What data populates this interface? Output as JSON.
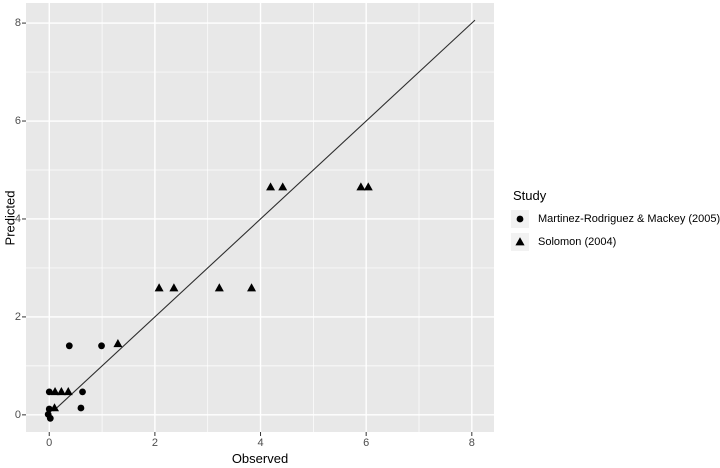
{
  "chart_data": {
    "type": "scatter",
    "title": "",
    "xlabel": "Observed",
    "ylabel": "Predicted",
    "xlim": [
      -0.44,
      8.42
    ],
    "ylim": [
      -0.35,
      8.41
    ],
    "x_ticks": [
      0,
      2,
      4,
      6,
      8
    ],
    "y_ticks": [
      0,
      2,
      4,
      6,
      8
    ],
    "x_minor_ticks": [
      1,
      3,
      5,
      7
    ],
    "y_minor_ticks": [
      1,
      3,
      5,
      7
    ],
    "grid": "major and minor, white on gray panel",
    "legend_title": "Study",
    "legend_position": "right",
    "series": [
      {
        "name": "Martinez-Rodriguez & Mackey (2005)",
        "marker": "circle",
        "points": [
          [
            0.0,
            0.47
          ],
          [
            0.63,
            0.47
          ],
          [
            0.0,
            0.12
          ],
          [
            0.6,
            0.14
          ],
          [
            -0.02,
            0.01
          ],
          [
            0.02,
            -0.07
          ],
          [
            0.38,
            1.41
          ],
          [
            0.99,
            1.41
          ]
        ]
      },
      {
        "name": "Solomon (2004)",
        "marker": "triangle",
        "points": [
          [
            0.11,
            0.47
          ],
          [
            0.23,
            0.47
          ],
          [
            0.36,
            0.47
          ],
          [
            0.1,
            0.14
          ],
          [
            1.3,
            1.45
          ],
          [
            2.08,
            2.59
          ],
          [
            2.36,
            2.59
          ],
          [
            3.22,
            2.59
          ],
          [
            3.83,
            2.59
          ],
          [
            4.19,
            4.65
          ],
          [
            4.42,
            4.65
          ],
          [
            5.9,
            4.65
          ],
          [
            6.04,
            4.65
          ]
        ]
      }
    ],
    "reference_line": {
      "label": "identity",
      "from": [
        0.08,
        0.08
      ],
      "to": [
        8.06,
        8.06
      ]
    }
  },
  "colors": {
    "panel_background": "#e8e8e8",
    "gridline": "#ffffff",
    "marker": "#000000",
    "reference_line": "#2e2e2e",
    "tick_mark": "#333333",
    "axis_text": "#4d4d4d",
    "title_text": "#000000",
    "legend_key_background": "#f2f2f2",
    "page_background": "#ffffff"
  }
}
